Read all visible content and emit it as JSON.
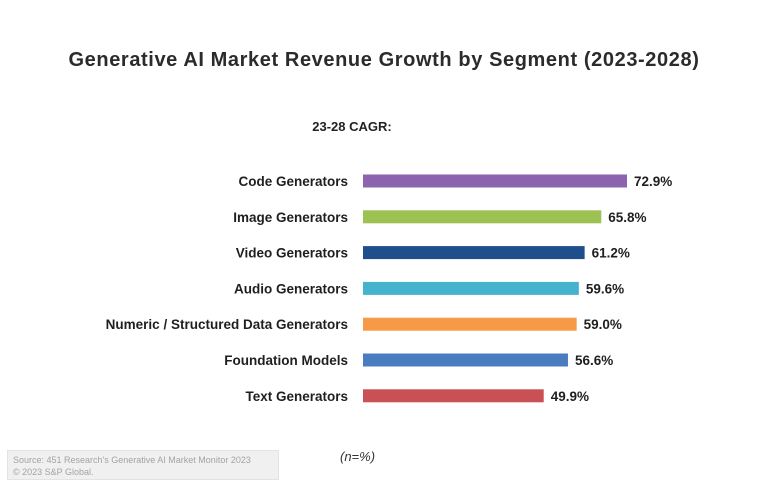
{
  "chart_data": {
    "type": "bar",
    "orientation": "horizontal",
    "title": "Generative AI Market Revenue Growth by Segment (2023-2028)",
    "subtitle": "23-28 CAGR:",
    "categories": [
      "Code Generators",
      "Image Generators",
      "Video Generators",
      "Audio Generators",
      "Numeric / Structured Data Generators",
      "Foundation Models",
      "Text Generators"
    ],
    "values": [
      72.9,
      65.8,
      61.2,
      59.6,
      59.0,
      56.6,
      49.9
    ],
    "value_labels": [
      "72.9%",
      "65.8%",
      "61.2%",
      "59.6%",
      "59.0%",
      "56.6%",
      "49.9%"
    ],
    "colors": [
      "#8b63ae",
      "#9cc254",
      "#1f4e8c",
      "#45b3cd",
      "#f79a48",
      "#4a7cc0",
      "#c95054"
    ],
    "xlabel": "",
    "ylabel": "",
    "xlim": [
      0,
      72.9
    ],
    "grid": false,
    "legend": "none"
  },
  "footer": {
    "source_line1": "Source: 451 Research's Generative AI Market Monitor 2023",
    "source_line2": "© 2023 S&P Global.",
    "n_note": "(n=%)"
  }
}
